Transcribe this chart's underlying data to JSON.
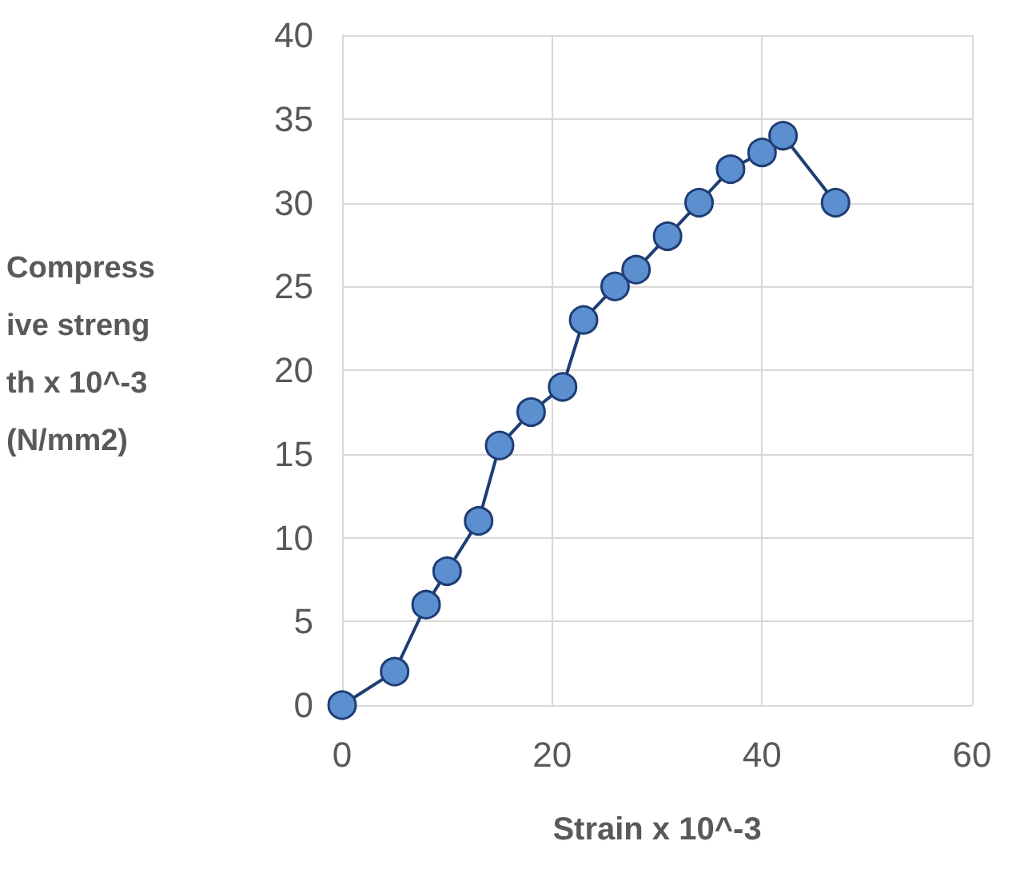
{
  "chart_data": {
    "type": "line",
    "xlabel": "Strain x 10^-3",
    "ylabel": "Compressive strength x 10^-3 (N/mm2)",
    "x": [
      0,
      5,
      8,
      10,
      13,
      15,
      18,
      21,
      23,
      26,
      28,
      31,
      34,
      37,
      40,
      42,
      47
    ],
    "series": [
      {
        "color": "#1f3d73",
        "values": [
          0,
          2,
          6,
          8,
          11,
          15.5,
          17.5,
          19,
          23,
          25,
          26,
          28,
          30,
          32,
          33,
          34,
          30
        ]
      }
    ],
    "xlim": [
      0,
      60
    ],
    "xticks": [
      0,
      20,
      40,
      60
    ],
    "ylim": [
      0,
      40
    ],
    "yticks": [
      0,
      5,
      10,
      15,
      20,
      25,
      30,
      35,
      40
    ],
    "grid": true,
    "marker": "circle",
    "line_style": "solid"
  }
}
